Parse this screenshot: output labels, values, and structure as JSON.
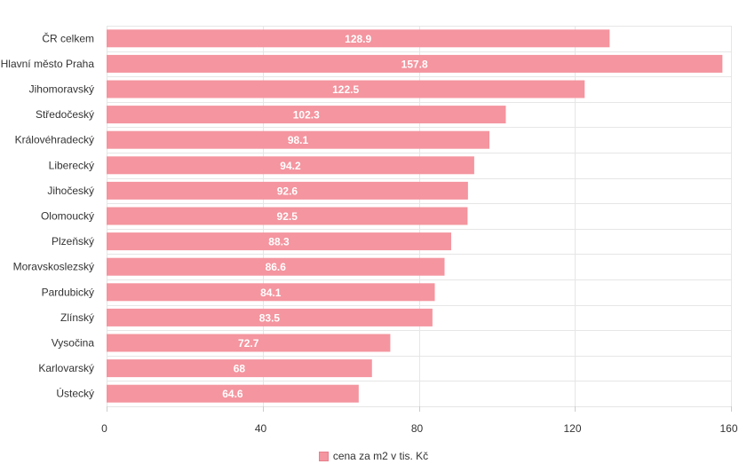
{
  "chart_data": {
    "type": "bar",
    "orientation": "horizontal",
    "categories": [
      "ČR celkem",
      "Hlavní město Praha",
      "Jihomoravský",
      "Středočeský",
      "Královéhradecký",
      "Liberecký",
      "Jihočeský",
      "Olomoucký",
      "Plzeňský",
      "Moravskoslezský",
      "Pardubický",
      "Zlínský",
      "Vysočina",
      "Karlovarský",
      "Ústecký"
    ],
    "series": [
      {
        "name": "cena za m2 v tis. Kč",
        "values": [
          128.9,
          157.8,
          122.5,
          102.3,
          98.1,
          94.2,
          92.6,
          92.5,
          88.3,
          86.6,
          84.1,
          83.5,
          72.7,
          68,
          64.6
        ],
        "color": "#f4959f"
      }
    ],
    "data_labels": [
      "128.9",
      "157.8",
      "122.5",
      "102.3",
      "98.1",
      "94.2",
      "92.6",
      "92.5",
      "88.3",
      "86.6",
      "84.1",
      "83.5",
      "72.7",
      "68",
      "64.6"
    ],
    "xlim": [
      0,
      160
    ],
    "xticks": [
      0,
      40,
      80,
      120,
      160
    ],
    "xtick_labels": [
      "0",
      "40",
      "80",
      "120",
      "160"
    ],
    "grid": true,
    "legend_position": "bottom-center"
  },
  "colors": {
    "bar": "#f4959f",
    "grid": "#e6e6e6",
    "axis": "#cccccc",
    "text": "#333333",
    "data_label": "#ffffff"
  }
}
